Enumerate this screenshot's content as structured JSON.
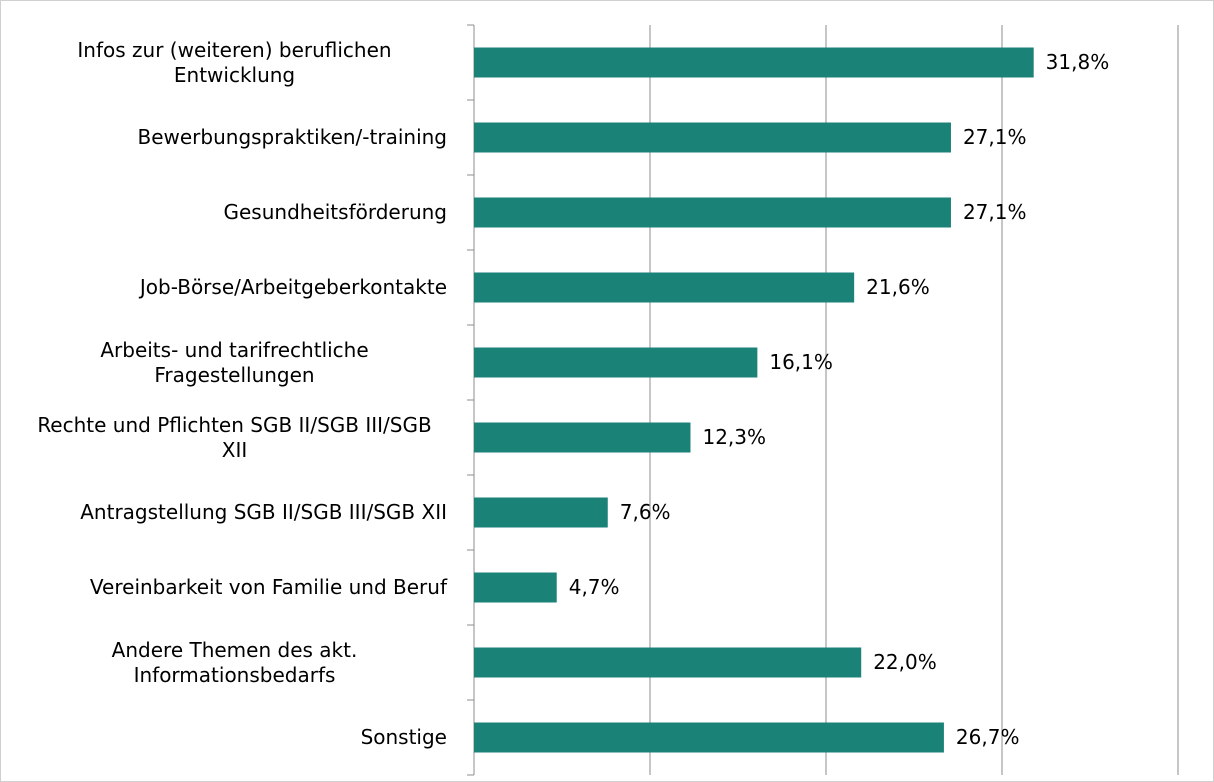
{
  "chart_data": {
    "type": "barh",
    "categories": [
      "Infos zur (weiteren) beruflichen Entwicklung",
      "Bewerbungspraktiken/-training",
      "Gesundheitsförderung",
      "Job-Börse/Arbeitgeberkontakte",
      "Arbeits- und tarifrechtliche Fragestellungen",
      "Rechte und Pflichten SGB II/SGB III/SGB XII",
      "Antragstellung SGB II/SGB III/SGB XII",
      "Vereinbarkeit von Familie und Beruf",
      "Andere Themen des akt. Informationsbedarfs",
      "Sonstige"
    ],
    "values": [
      31.8,
      27.1,
      27.1,
      21.6,
      16.1,
      12.3,
      7.6,
      4.7,
      22.0,
      26.7
    ],
    "value_labels": [
      "31,8%",
      "27,1%",
      "27,1%",
      "21,6%",
      "16,1%",
      "12,3%",
      "7,6%",
      "4,7%",
      "22,0%",
      "26,7%"
    ],
    "color": "#1b8278",
    "xlim": [
      0,
      40
    ],
    "xticks": [
      0,
      10,
      20,
      30,
      40
    ],
    "grid": true
  }
}
